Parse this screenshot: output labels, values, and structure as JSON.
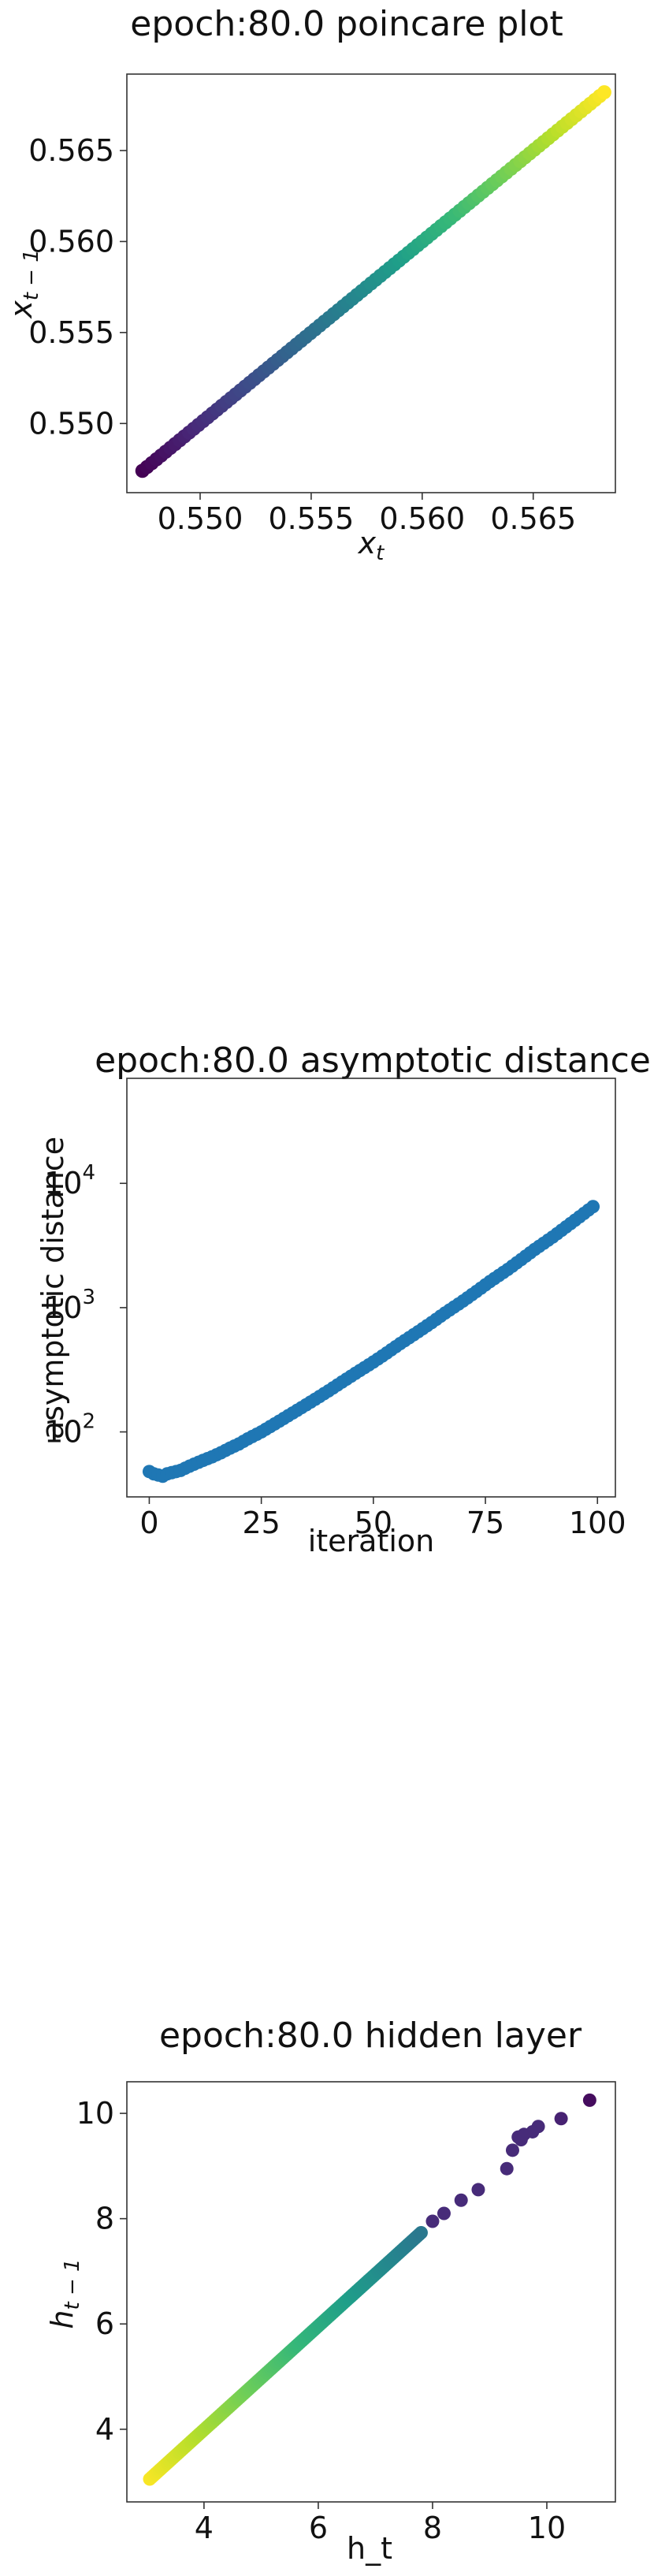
{
  "chart_data": [
    {
      "type": "scatter",
      "title": "epoch:80.0 poincare plot",
      "xlabel": "x_t",
      "ylabel": "x_{t-1}",
      "xlim": [
        0.5467,
        0.5687
      ],
      "ylim": [
        0.5462,
        0.5692
      ],
      "xticks": [
        0.55,
        0.555,
        0.56,
        0.565
      ],
      "xtick_labels": [
        "0.550",
        "0.555",
        "0.560",
        "0.565"
      ],
      "yticks": [
        0.55,
        0.555,
        0.56,
        0.565
      ],
      "ytick_labels": [
        "0.550",
        "0.555",
        "0.560",
        "0.565"
      ],
      "colormap": "viridis",
      "color_by": "x",
      "series": [
        {
          "x_start": 0.5474,
          "x_end": 0.5682,
          "n_points": 100,
          "relation": "y = x"
        }
      ]
    },
    {
      "type": "scatter",
      "title": "epoch:80.0 asymptotic distance",
      "xlabel": "iteration",
      "ylabel": "asymptotic distance",
      "yscale": "log",
      "xlim": [
        -5,
        104
      ],
      "ylim": [
        30,
        70000
      ],
      "xticks": [
        0,
        25,
        50,
        75,
        100
      ],
      "xtick_labels": [
        "0",
        "25",
        "50",
        "75",
        "100"
      ],
      "yticks": [
        100,
        1000,
        10000
      ],
      "ytick_labels": [
        "10",
        "10",
        "10"
      ],
      "ytick_exponents": [
        "2",
        "3",
        "4"
      ],
      "color": "#1f77b4",
      "series": [
        {
          "x": [
            0,
            1,
            2,
            3,
            4,
            5,
            6,
            7,
            8,
            9,
            10,
            12,
            14,
            16,
            18,
            20,
            22,
            25,
            28,
            31,
            34,
            37,
            40,
            43,
            46,
            50,
            53,
            56,
            60,
            63,
            66,
            70,
            73,
            76,
            80,
            83,
            86,
            90,
            93,
            96,
            99
          ],
          "y": [
            48,
            46,
            45,
            44,
            46,
            47,
            48,
            49,
            51,
            53,
            55,
            59,
            63,
            68,
            74,
            80,
            88,
            100,
            116,
            135,
            157,
            183,
            214,
            252,
            296,
            365,
            432,
            514,
            640,
            758,
            905,
            1130,
            1350,
            1620,
            2030,
            2440,
            2940,
            3700,
            4460,
            5380,
            6500
          ]
        }
      ]
    },
    {
      "type": "scatter",
      "title": "epoch:80.0 hidden layer",
      "xlabel": "h_t",
      "ylabel": "h_{t-1}",
      "xlim": [
        2.65,
        11.2
      ],
      "ylim": [
        2.62,
        10.6
      ],
      "xticks": [
        4,
        6,
        8,
        10
      ],
      "xtick_labels": [
        "4",
        "6",
        "8",
        "10"
      ],
      "yticks": [
        4,
        6,
        8,
        10
      ],
      "ytick_labels": [
        "4",
        "6",
        "8",
        "10"
      ],
      "colormap": "viridis_r",
      "series": [
        {
          "dense_line": {
            "x_start": 3.05,
            "x_end": 7.8,
            "slope": 0.985,
            "intercept": 0.05
          },
          "x": [
            8.0,
            8.2,
            8.5,
            8.8,
            9.3,
            9.4,
            9.5,
            9.55,
            9.6,
            9.75,
            9.85,
            10.25,
            10.75
          ],
          "y": [
            7.95,
            8.1,
            8.35,
            8.55,
            8.95,
            9.3,
            9.55,
            9.5,
            9.6,
            9.65,
            9.75,
            9.9,
            10.25
          ]
        }
      ]
    }
  ]
}
